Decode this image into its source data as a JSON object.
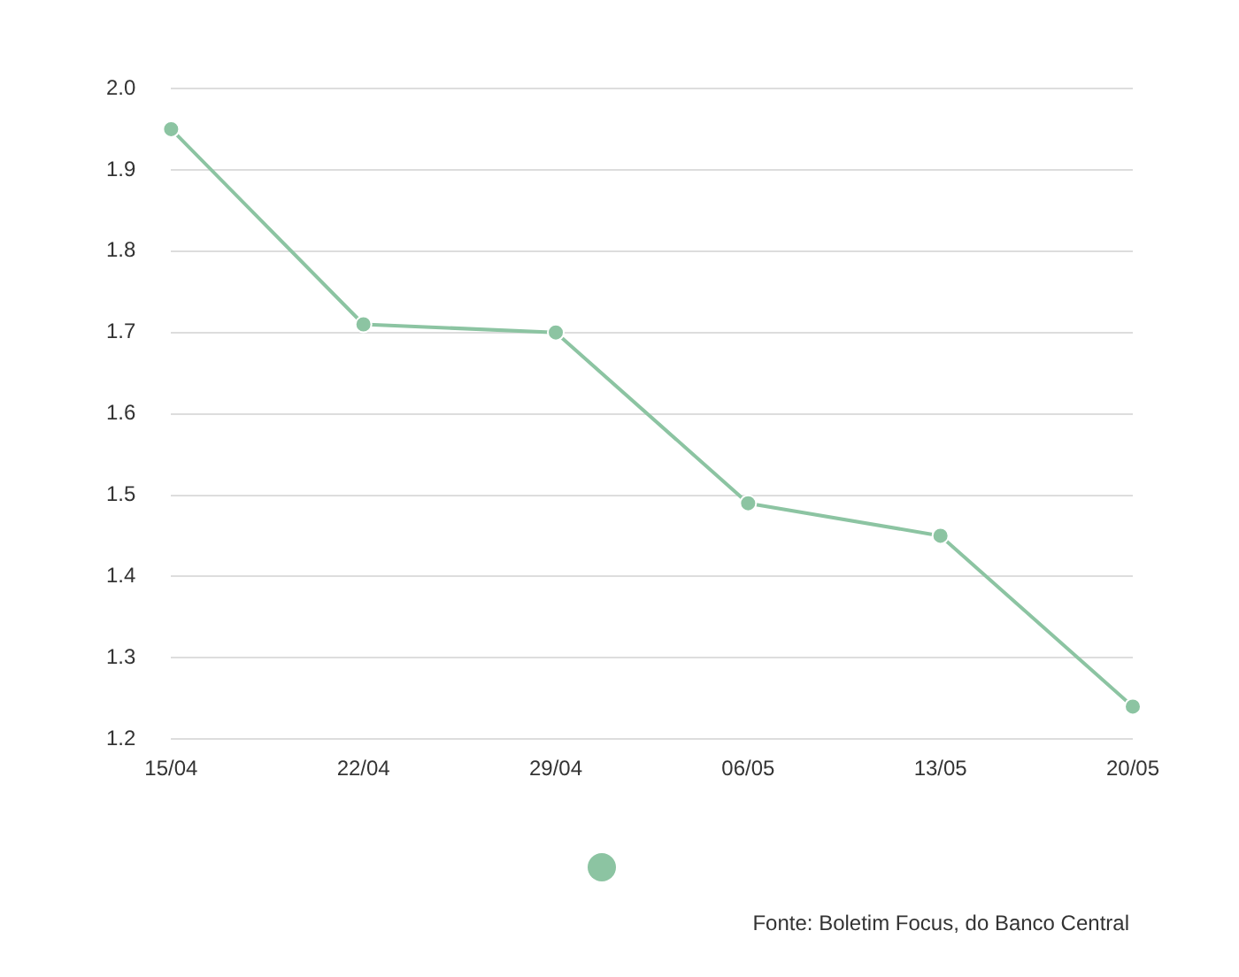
{
  "chart_data": {
    "type": "line",
    "categories": [
      "15/04",
      "22/04",
      "29/04",
      "06/05",
      "13/05",
      "20/05"
    ],
    "series": [
      {
        "color": "#8cc4a2",
        "values": [
          1.95,
          1.71,
          1.7,
          1.49,
          1.45,
          1.24
        ]
      }
    ],
    "ylim": [
      1.2,
      2.0
    ],
    "yticks": [
      {
        "value": 1.2,
        "label": "1.2"
      },
      {
        "value": 1.3,
        "label": "1.3"
      },
      {
        "value": 1.4,
        "label": "1.4"
      },
      {
        "value": 1.5,
        "label": "1.5"
      },
      {
        "value": 1.6,
        "label": "1.6"
      },
      {
        "value": 1.7,
        "label": "1.7"
      },
      {
        "value": 1.8,
        "label": "1.8"
      },
      {
        "value": 1.9,
        "label": "1.9"
      },
      {
        "value": 2.0,
        "label": "2.0"
      }
    ],
    "grid": "y",
    "marker": "circle",
    "line_style": "solid",
    "annotations": [
      "Fonte: Boletim Focus, do Banco Central"
    ]
  }
}
